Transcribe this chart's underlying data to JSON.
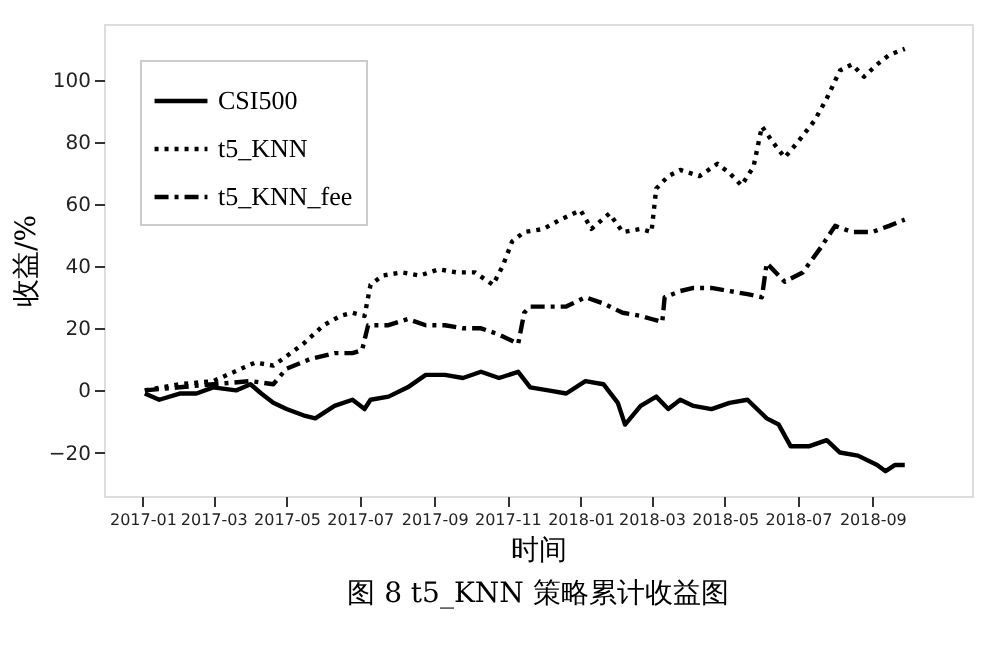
{
  "chart_data": {
    "type": "line",
    "title": "图 8  t5_KNN 策略累计收益图",
    "xlabel": "时间",
    "ylabel": "收益/%",
    "xlim": [
      "2016-11-30",
      "2018-11-23"
    ],
    "ylim": [
      -34,
      118
    ],
    "xticks": [
      {
        "value": "2017-01-01",
        "label": "2017-01"
      },
      {
        "value": "2017-03-01",
        "label": "2017-03"
      },
      {
        "value": "2017-05-01",
        "label": "2017-05"
      },
      {
        "value": "2017-07-01",
        "label": "2017-07"
      },
      {
        "value": "2017-09-01",
        "label": "2017-09"
      },
      {
        "value": "2017-11-01",
        "label": "2017-11"
      },
      {
        "value": "2018-01-01",
        "label": "2018-01"
      },
      {
        "value": "2018-03-01",
        "label": "2018-03"
      },
      {
        "value": "2018-05-01",
        "label": "2018-05"
      },
      {
        "value": "2018-07-01",
        "label": "2018-07"
      },
      {
        "value": "2018-09-01",
        "label": "2018-09"
      }
    ],
    "yticks": [
      -20,
      0,
      20,
      40,
      60,
      80,
      100
    ],
    "grid": false,
    "legend": "top left",
    "marker": "none",
    "series": [
      {
        "name": "CSI500",
        "color": "#000000",
        "line_style": "solid",
        "x": [
          "2017-01-03",
          "2017-01-15",
          "2017-02-01",
          "2017-02-15",
          "2017-03-01",
          "2017-03-20",
          "2017-04-01",
          "2017-04-10",
          "2017-04-20",
          "2017-05-01",
          "2017-05-15",
          "2017-05-25",
          "2017-06-10",
          "2017-06-25",
          "2017-07-05",
          "2017-07-10",
          "2017-07-25",
          "2017-08-10",
          "2017-08-25",
          "2017-09-10",
          "2017-09-25",
          "2017-10-10",
          "2017-10-25",
          "2017-11-10",
          "2017-11-20",
          "2017-12-05",
          "2017-12-20",
          "2018-01-05",
          "2018-01-20",
          "2018-02-01",
          "2018-02-07",
          "2018-02-20",
          "2018-03-05",
          "2018-03-15",
          "2018-03-25",
          "2018-04-05",
          "2018-04-20",
          "2018-05-05",
          "2018-05-20",
          "2018-06-05",
          "2018-06-15",
          "2018-06-25",
          "2018-07-10",
          "2018-07-25",
          "2018-08-05",
          "2018-08-20",
          "2018-09-05",
          "2018-09-12",
          "2018-09-20",
          "2018-09-28"
        ],
        "values": [
          -1,
          -3,
          -1,
          -1,
          1,
          0,
          2,
          -1,
          -4,
          -6,
          -8,
          -9,
          -5,
          -3,
          -6,
          -3,
          -2,
          1,
          5,
          5,
          4,
          6,
          4,
          6,
          1,
          0,
          -1,
          3,
          2,
          -4,
          -11,
          -5,
          -2,
          -6,
          -3,
          -5,
          -6,
          -4,
          -3,
          -9,
          -11,
          -18,
          -18,
          -16,
          -20,
          -21,
          -24,
          -26,
          -24,
          -24
        ]
      },
      {
        "name": "t5_KNN",
        "color": "#000000",
        "line_style": "dotted",
        "x": [
          "2017-01-03",
          "2017-02-01",
          "2017-03-01",
          "2017-04-05",
          "2017-04-20",
          "2017-05-01",
          "2017-05-15",
          "2017-06-01",
          "2017-06-15",
          "2017-06-25",
          "2017-07-05",
          "2017-07-10",
          "2017-07-20",
          "2017-08-05",
          "2017-08-20",
          "2017-09-05",
          "2017-09-20",
          "2017-10-05",
          "2017-10-20",
          "2017-10-28",
          "2017-11-05",
          "2017-11-15",
          "2017-12-01",
          "2017-12-15",
          "2018-01-01",
          "2018-01-10",
          "2018-01-25",
          "2018-02-05",
          "2018-02-20",
          "2018-03-01",
          "2018-03-05",
          "2018-03-15",
          "2018-03-25",
          "2018-04-10",
          "2018-04-25",
          "2018-05-05",
          "2018-05-15",
          "2018-05-25",
          "2018-06-01",
          "2018-06-10",
          "2018-06-20",
          "2018-07-01",
          "2018-07-15",
          "2018-07-25",
          "2018-08-05",
          "2018-08-15",
          "2018-08-25",
          "2018-09-05",
          "2018-09-15",
          "2018-09-28"
        ],
        "values": [
          0,
          2,
          3,
          9,
          8,
          11,
          15,
          21,
          24,
          25,
          24,
          34,
          37,
          38,
          37,
          39,
          38,
          38,
          34,
          40,
          48,
          51,
          52,
          55,
          58,
          52,
          57,
          51,
          52,
          51,
          65,
          69,
          71,
          69,
          73,
          70,
          66,
          72,
          85,
          80,
          75,
          80,
          87,
          94,
          103,
          105,
          101,
          105,
          108,
          110
        ]
      },
      {
        "name": "t5_KNN_fee",
        "color": "#000000",
        "line_style": "dashed",
        "x": [
          "2017-01-03",
          "2017-02-01",
          "2017-03-01",
          "2017-04-01",
          "2017-04-20",
          "2017-05-01",
          "2017-05-20",
          "2017-06-10",
          "2017-06-25",
          "2017-07-03",
          "2017-07-08",
          "2017-07-25",
          "2017-08-10",
          "2017-08-25",
          "2017-09-10",
          "2017-09-25",
          "2017-10-10",
          "2017-10-25",
          "2017-11-10",
          "2017-11-15",
          "2017-11-20",
          "2017-12-05",
          "2017-12-20",
          "2018-01-05",
          "2018-01-20",
          "2018-02-05",
          "2018-02-20",
          "2018-03-01",
          "2018-03-10",
          "2018-03-12",
          "2018-03-25",
          "2018-04-05",
          "2018-04-20",
          "2018-05-05",
          "2018-05-20",
          "2018-06-01",
          "2018-06-05",
          "2018-06-20",
          "2018-07-05",
          "2018-07-20",
          "2018-08-01",
          "2018-08-15",
          "2018-09-01",
          "2018-09-15",
          "2018-09-28"
        ],
        "values": [
          0,
          1,
          2,
          3,
          2,
          7,
          10,
          12,
          12,
          13,
          21,
          21,
          23,
          21,
          21,
          20,
          20,
          18,
          15,
          25,
          27,
          27,
          27,
          30,
          28,
          25,
          24,
          23,
          22,
          30,
          32,
          33,
          33,
          32,
          31,
          30,
          41,
          35,
          38,
          46,
          53,
          51,
          51,
          53,
          55
        ]
      }
    ]
  }
}
